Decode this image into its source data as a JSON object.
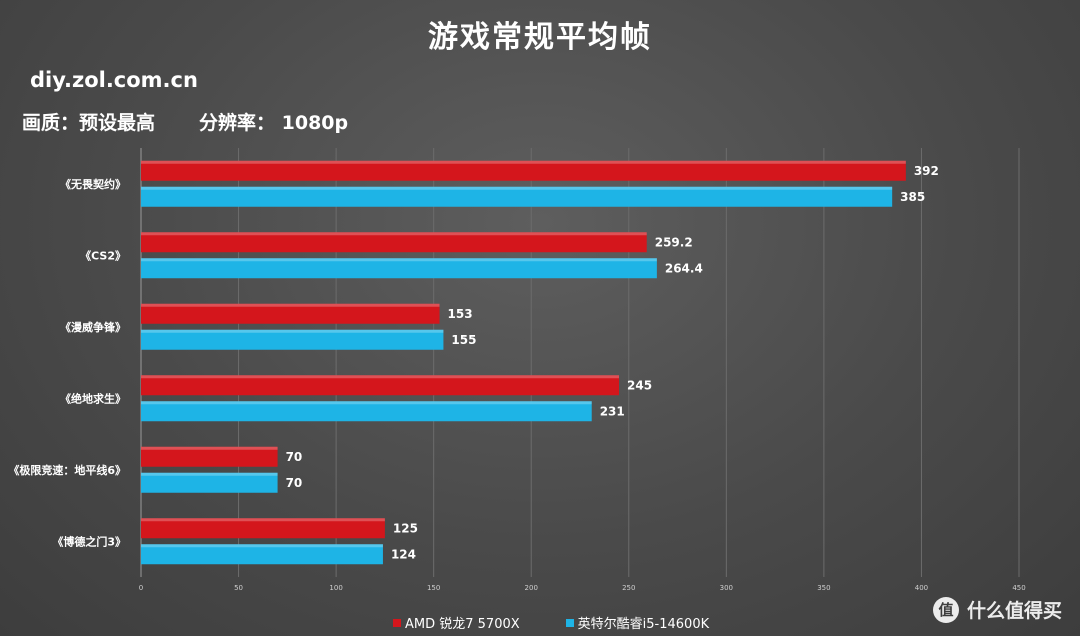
{
  "header": {
    "title": "游戏常规平均帧",
    "site": "diy.zol.com.cn",
    "quality_label": "画质：预设最高",
    "resolution_label": "分辨率： 1080p"
  },
  "chart_data": {
    "type": "bar",
    "orientation": "horizontal",
    "categories": [
      "《无畏契约》",
      "《CS2》",
      "《漫威争锋》",
      "《绝地求生》",
      "《极限竞速：地平线6》",
      "《博德之门3》"
    ],
    "series": [
      {
        "name": "AMD 锐龙7 5700X",
        "color": "#d4161c",
        "values": [
          392,
          259.2,
          153,
          245,
          70,
          125
        ]
      },
      {
        "name": "英特尔酷睿i5-14600K",
        "color": "#1eb4e6",
        "values": [
          385,
          264.4,
          155,
          231,
          70,
          124
        ]
      }
    ],
    "value_labels": [
      [
        "392",
        "259.2",
        "153",
        "245",
        "70",
        "125"
      ],
      [
        "385",
        "264.4",
        "155",
        "231",
        "70",
        "124"
      ]
    ],
    "xlim": [
      0,
      450
    ],
    "xticks": [
      "0",
      "50",
      "100",
      "150",
      "200",
      "250",
      "300",
      "350",
      "400",
      "450"
    ],
    "grid": true,
    "legend_position": "bottom"
  },
  "watermark": {
    "logo_glyph": "值",
    "text": "什么值得买"
  }
}
